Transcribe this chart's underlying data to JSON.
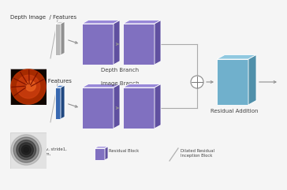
{
  "bg_color": "#f5f5f5",
  "title_depth": "Depth Image  / Features",
  "title_rgb": "RGB Image  / Features",
  "depth_branch_label": "Depth Branch",
  "image_branch_label": "Image Branch",
  "residual_label": "Residual Addition",
  "legend_blue_label": "3 X 3 Conv, stride1,\nBatchNorm,\nRelu",
  "legend_purple_label": "Residual Block",
  "legend_slash_label": "Dilated Residual\nInception Block",
  "purple_face": "#8070c0",
  "purple_side": "#6050a0",
  "purple_top": "#9888d8",
  "blue_face": "#70b0cc",
  "blue_side": "#5090aa",
  "blue_top": "#90c8e0",
  "gray_face": "#b8b8b8",
  "gray_side": "#909090",
  "gray_top": "#d0d0d0",
  "navy_face": "#3868b0",
  "navy_side": "#204880",
  "navy_top": "#5080c8",
  "arrow_color": "#909090",
  "line_color": "#aaaaaa"
}
